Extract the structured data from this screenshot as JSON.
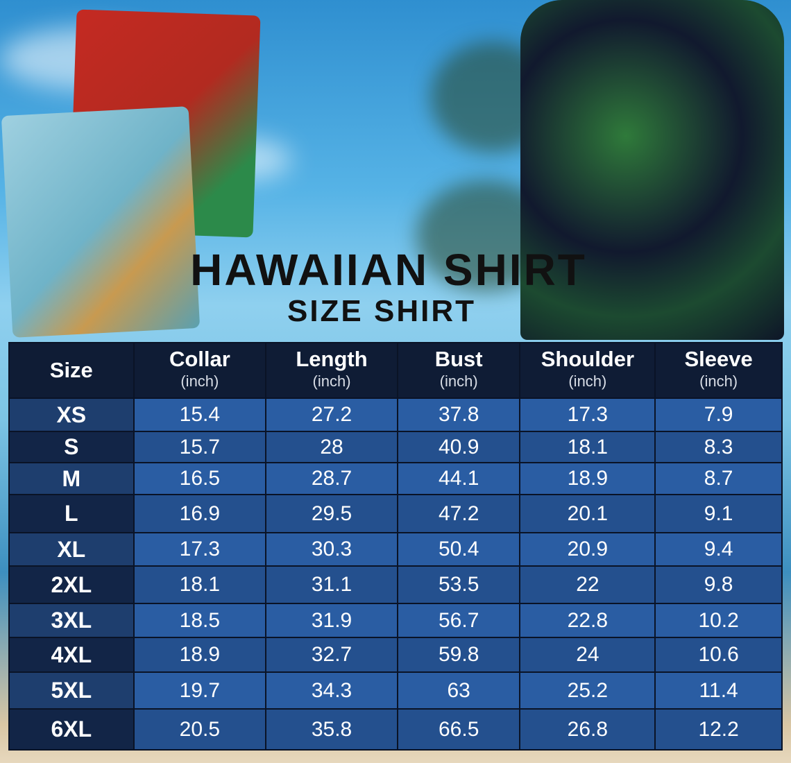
{
  "title": "HAWAIIAN SHIRT",
  "subtitle": "SIZE SHIRT",
  "table": {
    "headers": [
      {
        "label": "Size",
        "unit": ""
      },
      {
        "label": "Collar",
        "unit": "(inch)"
      },
      {
        "label": "Length",
        "unit": "(inch)"
      },
      {
        "label": "Bust",
        "unit": "(inch)"
      },
      {
        "label": "Shoulder",
        "unit": "(inch)"
      },
      {
        "label": "Sleeve",
        "unit": "(inch)"
      }
    ],
    "rows": [
      [
        "XS",
        "15.4",
        "27.2",
        "37.8",
        "17.3",
        "7.9"
      ],
      [
        "S",
        "15.7",
        "28",
        "40.9",
        "18.1",
        "8.3"
      ],
      [
        "M",
        "16.5",
        "28.7",
        "44.1",
        "18.9",
        "8.7"
      ],
      [
        "L",
        "16.9",
        "29.5",
        "47.2",
        "20.1",
        "9.1"
      ],
      [
        "XL",
        "17.3",
        "30.3",
        "50.4",
        "20.9",
        "9.4"
      ],
      [
        "2XL",
        "18.1",
        "31.1",
        "53.5",
        "22",
        "9.8"
      ],
      [
        "3XL",
        "18.5",
        "31.9",
        "56.7",
        "22.8",
        "10.2"
      ],
      [
        "4XL",
        "18.9",
        "32.7",
        "59.8",
        "24",
        "10.6"
      ],
      [
        "5XL",
        "19.7",
        "34.3",
        "63",
        "25.2",
        "11.4"
      ],
      [
        "6XL",
        "20.5",
        "35.8",
        "66.5",
        "26.8",
        "12.2"
      ]
    ]
  },
  "colors": {
    "header": "#0f1c35",
    "cell_light": "#2a5da3",
    "cell_dark": "#24508e",
    "text": "#ffffff"
  }
}
